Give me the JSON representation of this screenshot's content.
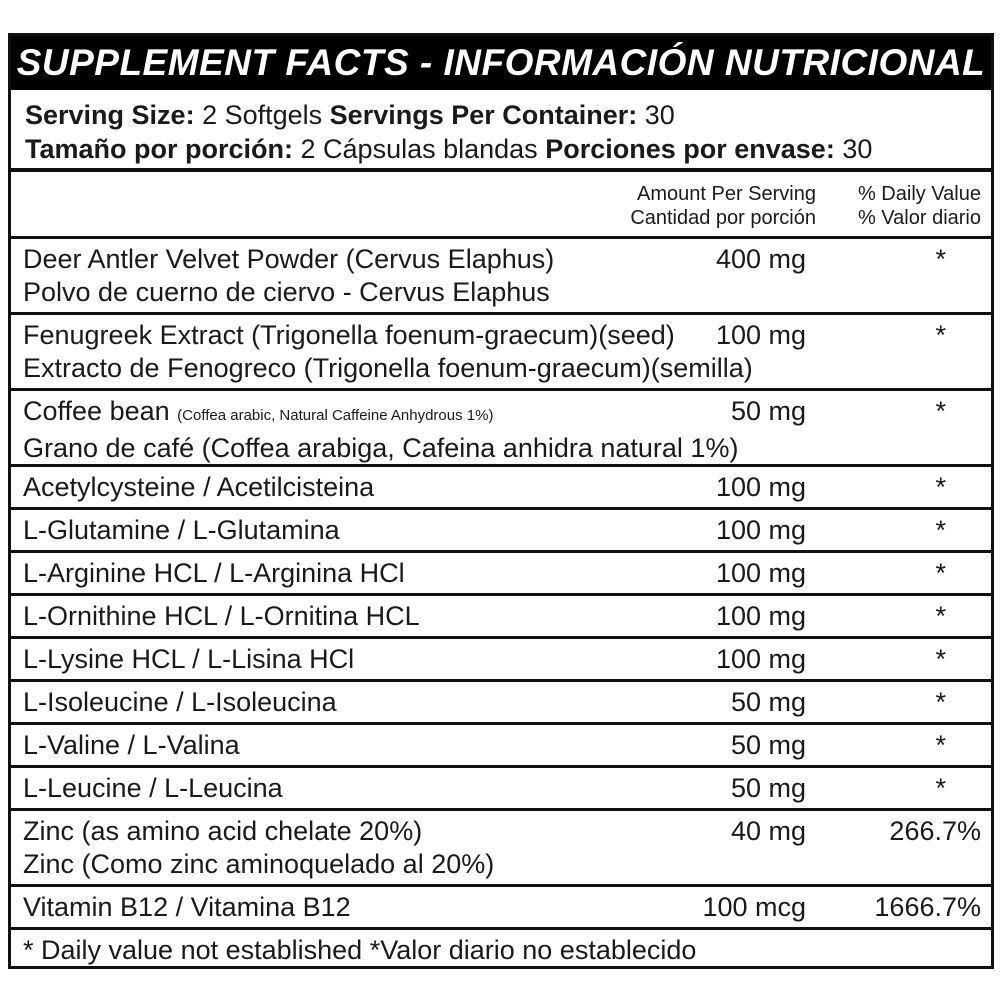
{
  "title": "SUPPLEMENT FACTS - INFORMACIÓN NUTRICIONAL",
  "serving": {
    "size_label": "Serving Size:",
    "size_value": "2 Softgels",
    "per_container_label": "Servings Per Container:",
    "per_container_value": "30",
    "size_label_es": "Tamaño por porción:",
    "size_value_es": "2 Cápsulas blandas",
    "per_container_label_es": "Porciones por envase:",
    "per_container_value_es": "30"
  },
  "header": {
    "amount": "Amount Per Serving",
    "amount_es": "Cantidad por porción",
    "dv": "% Daily Value",
    "dv_es": "% Valor diario"
  },
  "rows": [
    {
      "lines": [
        "Deer Antler Velvet Powder (Cervus Elaphus)",
        "Polvo de cuerno de ciervo - Cervus Elaphus"
      ],
      "amount": "400 mg",
      "dv": "*"
    },
    {
      "lines": [
        "Fenugreek Extract (Trigonella foenum-graecum)(seed)",
        "Extracto de Fenogreco (Trigonella foenum-graecum)(semilla)"
      ],
      "amount": "100 mg",
      "dv": "*"
    },
    {
      "lines": [
        "Coffee bean",
        "Grano de café (Coffea arabiga, Cafeina anhidra natural 1%)"
      ],
      "small": "(Coffea arabic, Natural Caffeine Anhydrous 1%)",
      "amount": "50 mg",
      "dv": "*"
    },
    {
      "lines": [
        "Acetylcysteine / Acetilcisteina"
      ],
      "amount": "100 mg",
      "dv": "*"
    },
    {
      "lines": [
        "L-Glutamine / L-Glutamina"
      ],
      "amount": "100 mg",
      "dv": "*"
    },
    {
      "lines": [
        "L-Arginine HCL / L-Arginina HCl"
      ],
      "amount": "100 mg",
      "dv": "*"
    },
    {
      "lines": [
        "L-Ornithine HCL / L-Ornitina HCL"
      ],
      "amount": "100 mg",
      "dv": "*"
    },
    {
      "lines": [
        "L-Lysine HCL / L-Lisina HCl"
      ],
      "amount": "100 mg",
      "dv": "*"
    },
    {
      "lines": [
        "L-Isoleucine / L-Isoleucina"
      ],
      "amount": "50 mg",
      "dv": "*"
    },
    {
      "lines": [
        "L-Valine / L-Valina"
      ],
      "amount": "50 mg",
      "dv": "*"
    },
    {
      "lines": [
        "L-Leucine / L-Leucina"
      ],
      "amount": "50 mg",
      "dv": "*"
    },
    {
      "lines": [
        "Zinc (as amino acid chelate 20%)",
        "Zinc (Como zinc aminoquelado al 20%)"
      ],
      "amount": "40 mg",
      "dv": "266.7%"
    },
    {
      "lines": [
        "Vitamin B12  / Vitamina B12"
      ],
      "amount": "100 mcg",
      "dv": "1666.7%"
    }
  ],
  "footer": "* Daily value not established *Valor diario no establecido"
}
